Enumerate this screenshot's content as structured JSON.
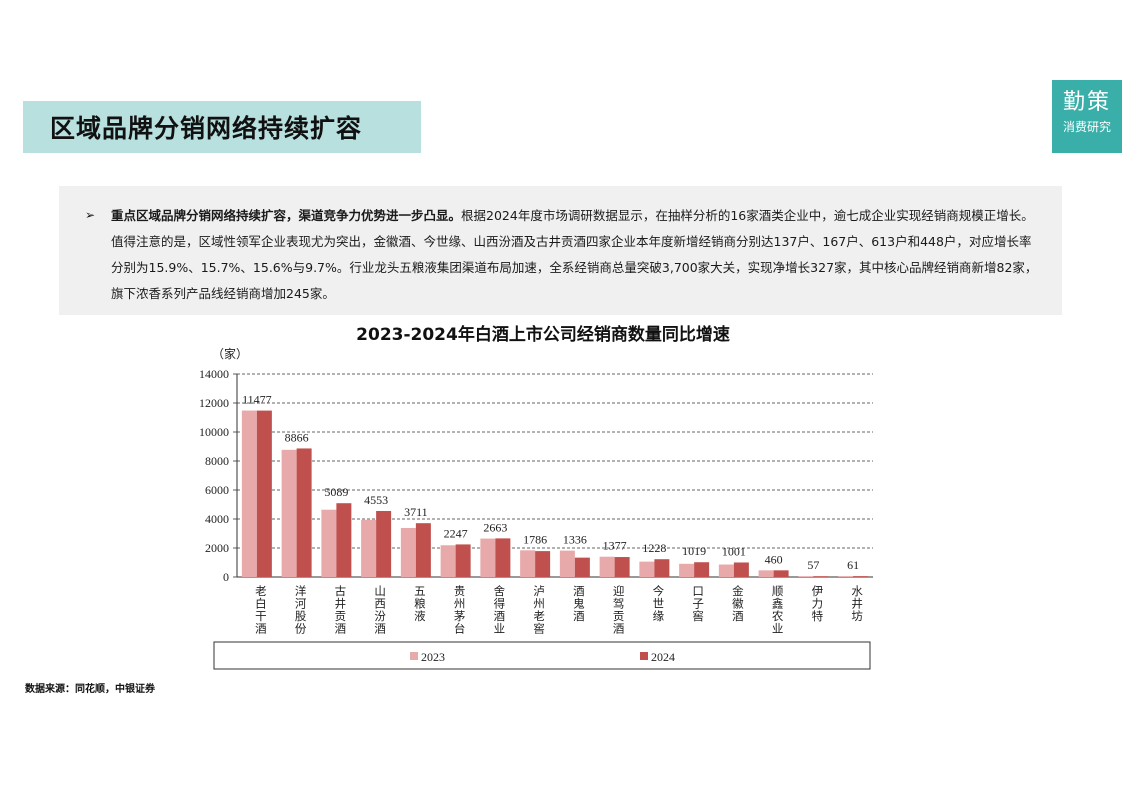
{
  "header": {
    "title": "区域品牌分销网络持续扩容",
    "logo_main": "勤策",
    "logo_sub": "消费研究"
  },
  "text_box": {
    "bullet": "➢",
    "bold_text": "重点区域品牌分销网络持续扩容，渠道竞争力优势进一步凸显。",
    "body_text": "根据2024年度市场调研数据显示，在抽样分析的16家酒类企业中，逾七成企业实现经销商规模正增长。值得注意的是，区域性领军企业表现尤为突出，金徽酒、今世缘、山西汾酒及古井贡酒四家企业本年度新增经销商分别达137户、167户、613户和448户，对应增长率分别为15.9%、15.7%、15.6%与9.7%。行业龙头五粮液集团渠道布局加速，全系经销商总量突破3,700家大关，实现净增长327家，其中核心品牌经销商新增82家，旗下浓香系列产品线经销商增加245家。"
  },
  "source": "数据来源：同花顺，中银证券",
  "chart_data": {
    "type": "bar",
    "title": "2023-2024年白酒上市公司经销商数量同比增速",
    "ylabel": "（家）",
    "ylim": [
      0,
      14000
    ],
    "yticks": [
      0,
      2000,
      4000,
      6000,
      8000,
      10000,
      12000,
      14000
    ],
    "grid": true,
    "legend_position": "bottom",
    "categories": [
      "老白干酒",
      "洋河股份",
      "古井贡酒",
      "山西汾酒",
      "五粮液",
      "贵州茅台",
      "舍得酒业",
      "泸州老窖",
      "酒鬼酒",
      "迎驾贡酒",
      "今世缘",
      "口子窖",
      "金徽酒",
      "顺鑫农业",
      "伊力特",
      "水井坊"
    ],
    "series": [
      {
        "name": "2023",
        "color": "#e8a9ab",
        "values": [
          11480,
          8770,
          4640,
          3940,
          3380,
          2190,
          2650,
          1840,
          1820,
          1400,
          1060,
          910,
          860,
          460,
          57,
          61
        ]
      },
      {
        "name": "2024",
        "color": "#c0504d",
        "values": [
          11477,
          8866,
          5089,
          4553,
          3711,
          2247,
          2663,
          1786,
          1336,
          1377,
          1228,
          1019,
          1001,
          460,
          57,
          61
        ]
      }
    ],
    "data_labels": [
      "11477",
      "8866",
      "5089",
      "4553",
      "3711",
      "2247",
      "2663",
      "1786",
      "1336",
      "1377",
      "1228",
      "1019",
      "1001",
      "460",
      "57",
      "61"
    ]
  }
}
